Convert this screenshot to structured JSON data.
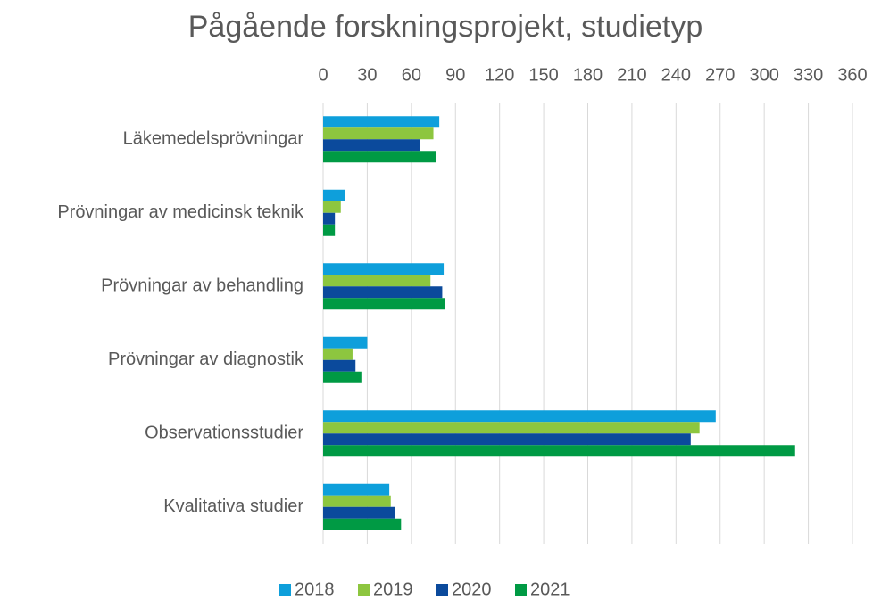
{
  "chart_data": {
    "type": "bar",
    "orientation": "horizontal",
    "title": "Pågående forskningsprojekt, studietyp",
    "categories": [
      "Läkemedelsprövningar",
      "Prövningar av medicinsk teknik",
      "Prövningar av behandling",
      "Prövningar av diagnostik",
      "Observationsstudier",
      "Kvalitativa studier"
    ],
    "series": [
      {
        "name": "2018",
        "color": "#0e9fdb",
        "values": [
          79,
          15,
          82,
          30,
          267,
          45
        ]
      },
      {
        "name": "2019",
        "color": "#8dc63f",
        "values": [
          75,
          12,
          73,
          20,
          256,
          46
        ]
      },
      {
        "name": "2020",
        "color": "#0b4a9c",
        "values": [
          66,
          8,
          81,
          22,
          250,
          49
        ]
      },
      {
        "name": "2021",
        "color": "#009a44",
        "values": [
          77,
          8,
          83,
          26,
          321,
          53
        ]
      }
    ],
    "xlim": [
      0,
      360
    ],
    "xticks": [
      0,
      30,
      60,
      90,
      120,
      150,
      180,
      210,
      240,
      270,
      300,
      330,
      360
    ],
    "grid": true,
    "legend": "bottom"
  }
}
